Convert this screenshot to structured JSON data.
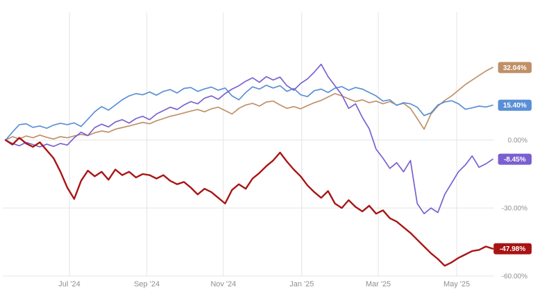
{
  "chart_data": {
    "type": "line",
    "title": "",
    "xlabel": "",
    "ylabel": "",
    "grid": true,
    "legend_position": "right-badges",
    "ylim": [
      -60,
      36
    ],
    "x_ticks": [
      {
        "label": "Jul '24",
        "t": 0.131
      },
      {
        "label": "Sep '24",
        "t": 0.29
      },
      {
        "label": "Nov '24",
        "t": 0.447
      },
      {
        "label": "Jan '25",
        "t": 0.608
      },
      {
        "label": "Mar '25",
        "t": 0.765
      },
      {
        "label": "May '25",
        "t": 0.926
      }
    ],
    "y_ticks": [
      {
        "label": "0.00%",
        "value": 0
      },
      {
        "label": "-30.00%",
        "value": -30
      },
      {
        "label": "-60.00%",
        "value": -60
      }
    ],
    "series": [
      {
        "name": "tan",
        "color": "#bf9068",
        "stroke_width": 1.7,
        "end_label": "32.04%",
        "end_value": 32.04,
        "values": [
          0.0,
          1.5,
          0.5,
          1.8,
          1.0,
          2.2,
          1.2,
          0.5,
          1.5,
          1.0,
          1.8,
          2.5,
          2.0,
          3.2,
          4.0,
          3.5,
          4.8,
          5.5,
          6.2,
          7.0,
          7.8,
          7.2,
          8.5,
          9.5,
          10.5,
          11.2,
          12.0,
          12.8,
          13.5,
          12.5,
          13.8,
          14.5,
          13.0,
          11.5,
          14.0,
          15.5,
          16.2,
          15.0,
          16.8,
          17.2,
          15.5,
          14.0,
          14.8,
          13.8,
          15.2,
          16.5,
          17.5,
          19.0,
          20.5,
          19.5,
          18.2,
          17.0,
          17.8,
          16.5,
          17.2,
          16.0,
          17.0,
          15.5,
          16.2,
          14.0,
          9.5,
          4.8,
          11.5,
          15.0,
          17.5,
          19.5,
          22.0,
          24.5,
          26.5,
          28.5,
          30.5,
          32.04
        ]
      },
      {
        "name": "blue",
        "color": "#5a8fd6",
        "stroke_width": 1.7,
        "end_label": "15.40%",
        "end_value": 15.4,
        "values": [
          0.0,
          3.5,
          6.8,
          7.2,
          5.6,
          6.2,
          5.2,
          6.6,
          7.4,
          6.8,
          7.6,
          6.0,
          9.2,
          12.5,
          14.8,
          13.2,
          15.5,
          17.8,
          19.5,
          20.5,
          20.0,
          21.2,
          19.8,
          21.5,
          22.3,
          20.8,
          22.8,
          23.2,
          21.5,
          22.6,
          23.4,
          22.0,
          23.0,
          19.5,
          17.8,
          21.0,
          23.5,
          22.5,
          24.2,
          23.0,
          24.0,
          21.5,
          22.8,
          20.0,
          19.2,
          21.8,
          22.5,
          21.0,
          22.9,
          23.6,
          22.0,
          23.2,
          22.5,
          21.0,
          19.5,
          17.2,
          17.8,
          15.3,
          16.5,
          16.0,
          14.5,
          10.8,
          12.0,
          15.5,
          16.8,
          17.4,
          16.0,
          13.6,
          14.2,
          15.0,
          14.6,
          15.4
        ]
      },
      {
        "name": "purple",
        "color": "#7a5fd0",
        "stroke_width": 1.7,
        "end_label": "-8.45%",
        "end_value": -8.45,
        "values": [
          0.0,
          -1.5,
          -2.5,
          -1.0,
          -2.0,
          -3.0,
          -1.8,
          -2.8,
          -1.5,
          -2.2,
          1.0,
          3.5,
          2.0,
          5.5,
          7.0,
          5.8,
          8.0,
          9.0,
          7.5,
          9.5,
          10.5,
          9.0,
          11.5,
          13.0,
          14.5,
          13.5,
          15.5,
          17.0,
          16.0,
          18.5,
          19.5,
          18.0,
          20.5,
          22.5,
          24.0,
          26.0,
          27.5,
          25.5,
          28.0,
          26.5,
          27.8,
          24.0,
          22.0,
          25.0,
          27.0,
          30.0,
          33.5,
          28.0,
          24.0,
          20.0,
          14.0,
          16.0,
          10.0,
          5.0,
          -4.0,
          -8.0,
          -12.5,
          -10.0,
          -14.0,
          -9.0,
          -28.0,
          -32.5,
          -30.0,
          -32.0,
          -24.0,
          -19.0,
          -14.0,
          -11.0,
          -7.0,
          -12.0,
          -10.5,
          -8.45
        ]
      },
      {
        "name": "red",
        "color": "#a81414",
        "stroke_width": 2.4,
        "end_label": "-47.98%",
        "end_value": -47.98,
        "values": [
          0.0,
          -2.0,
          1.0,
          -1.5,
          -3.0,
          -1.0,
          -4.5,
          -8.0,
          -14.0,
          -21.0,
          -26.0,
          -18.0,
          -13.5,
          -16.0,
          -14.0,
          -17.5,
          -13.0,
          -15.5,
          -14.0,
          -16.5,
          -15.0,
          -15.5,
          -17.0,
          -15.5,
          -18.0,
          -19.5,
          -18.5,
          -21.0,
          -24.0,
          -21.5,
          -23.0,
          -25.5,
          -28.0,
          -22.0,
          -19.5,
          -21.5,
          -17.0,
          -14.5,
          -11.5,
          -9.0,
          -5.5,
          -9.5,
          -13.0,
          -16.0,
          -20.0,
          -23.0,
          -25.5,
          -22.5,
          -28.0,
          -30.0,
          -26.5,
          -29.5,
          -31.5,
          -29.0,
          -32.5,
          -31.0,
          -34.5,
          -36.0,
          -38.5,
          -41.0,
          -44.0,
          -47.0,
          -50.0,
          -52.5,
          -55.5,
          -54.0,
          -52.0,
          -50.5,
          -49.0,
          -48.5,
          -47.0,
          -47.98
        ]
      }
    ]
  }
}
